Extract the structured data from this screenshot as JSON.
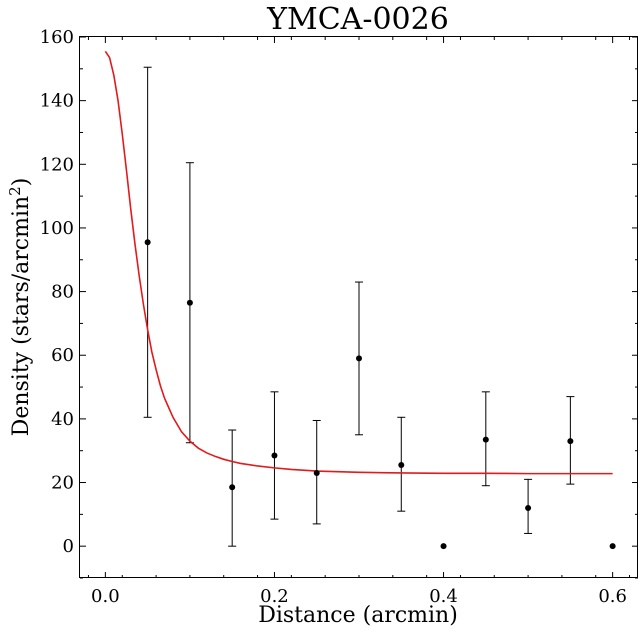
{
  "chart_data": {
    "type": "scatter",
    "title": "YMCA-0026",
    "xlabel": "Distance (arcmin)",
    "ylabel_main": "Density (stars/arcmin",
    "ylabel_sup": "2",
    "ylabel_close": ")",
    "xlim": [
      -0.03,
      0.63
    ],
    "ylim": [
      -10,
      160
    ],
    "x_ticks": [
      0.0,
      0.2,
      0.4,
      0.6
    ],
    "x_tick_labels": [
      "0.0",
      "0.2",
      "0.4",
      "0.6"
    ],
    "y_ticks": [
      0,
      20,
      40,
      60,
      80,
      100,
      120,
      140,
      160
    ],
    "y_tick_labels": [
      "0",
      "20",
      "40",
      "60",
      "80",
      "100",
      "120",
      "140",
      "160"
    ],
    "grid": false,
    "points": [
      {
        "x": 0.05,
        "y": 95.5,
        "lo": 40.5,
        "hi": 150.5
      },
      {
        "x": 0.1,
        "y": 76.5,
        "lo": 32.5,
        "hi": 120.5
      },
      {
        "x": 0.15,
        "y": 18.5,
        "lo": 0.0,
        "hi": 36.5
      },
      {
        "x": 0.2,
        "y": 28.5,
        "lo": 8.5,
        "hi": 48.5
      },
      {
        "x": 0.25,
        "y": 23.0,
        "lo": 7.0,
        "hi": 39.5
      },
      {
        "x": 0.3,
        "y": 59.0,
        "lo": 35.0,
        "hi": 83.0
      },
      {
        "x": 0.35,
        "y": 25.5,
        "lo": 11.0,
        "hi": 40.5
      },
      {
        "x": 0.4,
        "y": 0.0
      },
      {
        "x": 0.45,
        "y": 33.5,
        "lo": 19.0,
        "hi": 48.5
      },
      {
        "x": 0.5,
        "y": 12.0,
        "lo": 4.0,
        "hi": 21.0
      },
      {
        "x": 0.55,
        "y": 33.0,
        "lo": 19.5,
        "hi": 47.0
      },
      {
        "x": 0.6,
        "y": 0.0
      }
    ],
    "fit_curve": {
      "color": "#e31a1c",
      "x": [
        0.0,
        0.005,
        0.01,
        0.015,
        0.02,
        0.025,
        0.03,
        0.035,
        0.04,
        0.045,
        0.05,
        0.055,
        0.06,
        0.065,
        0.07,
        0.075,
        0.08,
        0.09,
        0.1,
        0.11,
        0.12,
        0.13,
        0.14,
        0.15,
        0.16,
        0.18,
        0.2,
        0.22,
        0.25,
        0.3,
        0.35,
        0.4,
        0.45,
        0.5,
        0.55,
        0.6
      ],
      "y": [
        155.5,
        153.5,
        148.0,
        140.0,
        129.5,
        118.0,
        106.0,
        95.0,
        85.0,
        76.0,
        68.0,
        61.0,
        55.5,
        50.5,
        46.5,
        43.5,
        40.5,
        36.0,
        33.0,
        30.8,
        29.3,
        28.2,
        27.3,
        26.6,
        26.0,
        25.2,
        24.6,
        24.1,
        23.6,
        23.2,
        23.0,
        22.9,
        22.9,
        22.8,
        22.8,
        22.8
      ]
    },
    "point_color": "#000000"
  }
}
